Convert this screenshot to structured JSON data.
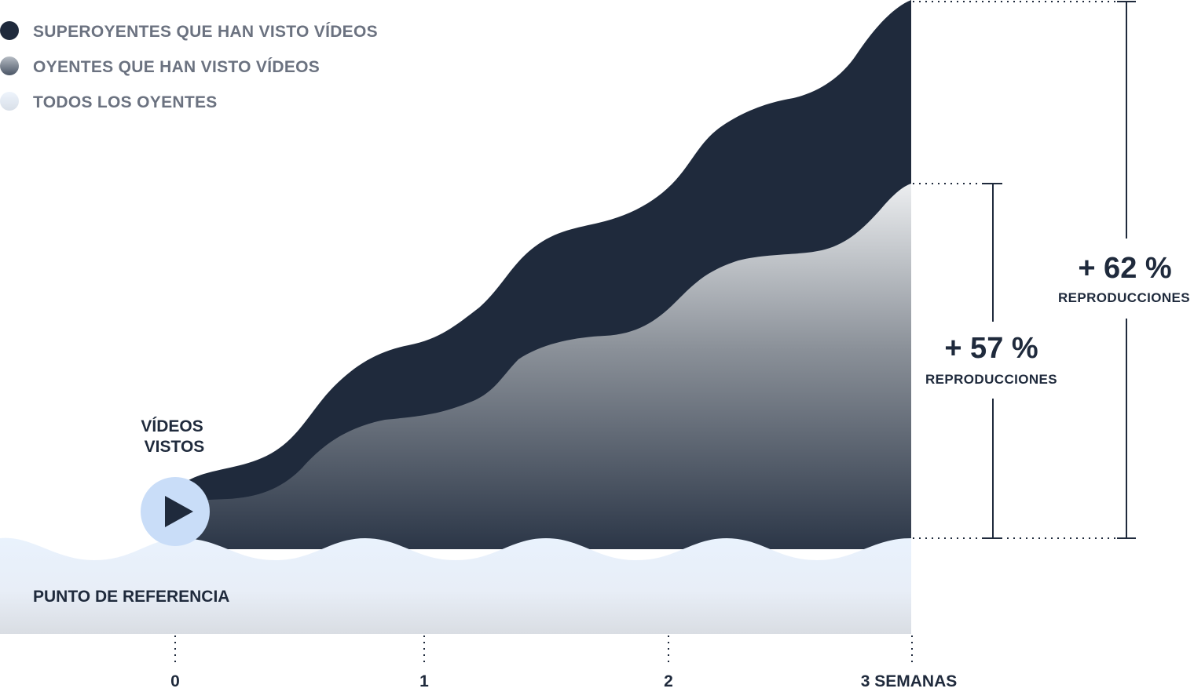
{
  "chart_data": {
    "type": "area",
    "x_ticks": [
      "0",
      "1",
      "2",
      "3 SEMANAS"
    ],
    "legend": [
      {
        "label": "SUPEROYENTES QUE HAN VISTO VÍDEOS",
        "color": "#1f2a3c"
      },
      {
        "label": "OYENTES QUE HAN VISTO VÍDEOS",
        "color": "#9ca3ab"
      },
      {
        "label": "TODOS LOS OYENTES",
        "color": "#e6eef9"
      }
    ],
    "series": [
      {
        "name": "SUPEROYENTES QUE HAN VISTO VÍDEOS",
        "x": [
          0,
          3
        ],
        "values": [
          1.0,
          1.62
        ]
      },
      {
        "name": "OYENTES QUE HAN VISTO VÍDEOS",
        "x": [
          0,
          3
        ],
        "values": [
          1.0,
          1.57
        ]
      },
      {
        "name": "TODOS LOS OYENTES",
        "x": [
          0,
          3
        ],
        "values": [
          1.0,
          1.0
        ]
      }
    ],
    "annotations": {
      "video_marker": "VÍDEOS VISTOS",
      "baseline_label": "PUNTO DE REFERENCIA",
      "gain_fans": {
        "value": "+ 57 %",
        "label": "REPRODUCCIONES"
      },
      "gain_superfans": {
        "value": "+ 62 %",
        "label": "REPRODUCCIONES"
      }
    }
  }
}
